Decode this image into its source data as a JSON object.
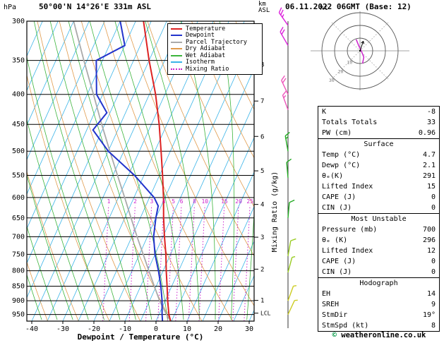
{
  "header": {
    "pressure_unit": "hPa",
    "station": "50°00'N 14°26'E 331m ASL",
    "km_label": "km",
    "asl_label": "ASL",
    "datetime": "06.11.2022 06GMT (Base: 12)"
  },
  "legend": {
    "items": [
      {
        "label": "Temperature",
        "color": "#dd2222",
        "dashed": false
      },
      {
        "label": "Dewpoint",
        "color": "#2233cc",
        "dashed": false
      },
      {
        "label": "Parcel Trajectory",
        "color": "#aaaaaa",
        "dashed": false
      },
      {
        "label": "Dry Adiabat",
        "color": "#e09b4d",
        "dashed": false
      },
      {
        "label": "Wet Adiabat",
        "color": "#3cb43c",
        "dashed": false
      },
      {
        "label": "Isotherm",
        "color": "#3ab4e8",
        "dashed": false
      },
      {
        "label": "Mixing Ratio",
        "color": "#cc22cc",
        "dashed": true
      }
    ]
  },
  "axes": {
    "pressure_ticks": [
      300,
      350,
      400,
      450,
      500,
      550,
      600,
      650,
      700,
      750,
      800,
      850,
      900,
      950
    ],
    "temp_ticks": [
      -40,
      -30,
      -20,
      -10,
      0,
      10,
      20,
      30
    ],
    "km_ticks": [
      8,
      7,
      6,
      5,
      4,
      3,
      2,
      1
    ],
    "lcl_label": "LCL",
    "xlabel": "Dewpoint / Temperature (°C)",
    "mixing_ratio_axis_label": "Mixing Ratio (g/kg)"
  },
  "hodograph": {
    "unit": "kt",
    "ring_labels": [
      10,
      20,
      30
    ],
    "trace_kt": [
      [
        2,
        -10
      ],
      [
        3,
        -5
      ],
      [
        1,
        0
      ],
      [
        -1,
        4
      ],
      [
        -3,
        9
      ]
    ],
    "storm_dir_deg": 19,
    "storm_spd_kt": 8
  },
  "panel": {
    "indices": {
      "rows": [
        {
          "label": "K",
          "value": "-8"
        },
        {
          "label": "Totals Totals",
          "value": "33"
        },
        {
          "label": "PW (cm)",
          "value": "0.96"
        }
      ]
    },
    "surface": {
      "title": "Surface",
      "rows": [
        {
          "label": "Temp (°C)",
          "value": "4.7"
        },
        {
          "label": "Dewp (°C)",
          "value": "2.1"
        },
        {
          "label": "θₑ(K)",
          "value": "291"
        },
        {
          "label": "Lifted Index",
          "value": "15"
        },
        {
          "label": "CAPE (J)",
          "value": "0"
        },
        {
          "label": "CIN (J)",
          "value": "0"
        }
      ]
    },
    "most_unstable": {
      "title": "Most Unstable",
      "rows": [
        {
          "label": "Pressure (mb)",
          "value": "700"
        },
        {
          "label": "θₑ (K)",
          "value": "296"
        },
        {
          "label": "Lifted Index",
          "value": "12"
        },
        {
          "label": "CAPE (J)",
          "value": "0"
        },
        {
          "label": "CIN (J)",
          "value": "0"
        }
      ]
    },
    "hodograph_info": {
      "title": "Hodograph",
      "rows": [
        {
          "label": "EH",
          "value": "14"
        },
        {
          "label": "SREH",
          "value": "9"
        },
        {
          "label": "StmDir",
          "value": "19°"
        },
        {
          "label": "StmSpd (kt)",
          "value": "8"
        }
      ]
    }
  },
  "footer": {
    "copyright_symbol": "©",
    "copyright_text": " weatheronline.co.uk"
  },
  "chart_data": {
    "type": "line",
    "title": "Skew-T log-P sounding",
    "x_axis": {
      "label": "Dewpoint / Temperature (°C)",
      "min": -40,
      "max": 35,
      "tick_step": 10
    },
    "y_axis": {
      "label": "hPa",
      "scale": "log",
      "bottom_hpa": 975,
      "top_hpa": 300
    },
    "skew": 0.45,
    "isotherm_step_c": 5,
    "dry_adiabat_step_k": 10,
    "wet_adiabat_step_c": 5,
    "mixing_ratio_lines_gkg": [
      1,
      2,
      3,
      4,
      5,
      6,
      8,
      10,
      15,
      20,
      25
    ],
    "lcl_hpa": 945,
    "series": [
      {
        "name": "Temperature",
        "points_p_t": [
          [
            975,
            4.7
          ],
          [
            950,
            3.2
          ],
          [
            900,
            0.8
          ],
          [
            850,
            -1.5
          ],
          [
            800,
            -4.0
          ],
          [
            750,
            -6.5
          ],
          [
            700,
            -9.5
          ],
          [
            650,
            -12.5
          ],
          [
            600,
            -15.5
          ],
          [
            550,
            -19.0
          ],
          [
            500,
            -23.0
          ],
          [
            450,
            -27.5
          ],
          [
            400,
            -33.0
          ],
          [
            350,
            -40.0
          ],
          [
            300,
            -47.5
          ]
        ]
      },
      {
        "name": "Dewpoint",
        "points_p_t": [
          [
            975,
            2.1
          ],
          [
            950,
            1.0
          ],
          [
            900,
            -1.0
          ],
          [
            850,
            -3.5
          ],
          [
            800,
            -6.5
          ],
          [
            750,
            -10.0
          ],
          [
            700,
            -13.0
          ],
          [
            650,
            -15.0
          ],
          [
            620,
            -16.0
          ],
          [
            600,
            -18.5
          ],
          [
            550,
            -28.0
          ],
          [
            500,
            -40.0
          ],
          [
            460,
            -48.0
          ],
          [
            430,
            -46.0
          ],
          [
            400,
            -52.0
          ],
          [
            350,
            -57.0
          ],
          [
            330,
            -50.0
          ],
          [
            300,
            -55.0
          ]
        ]
      },
      {
        "name": "Parcel Trajectory",
        "points_p_t": [
          [
            975,
            4.7
          ],
          [
            945,
            2.0
          ],
          [
            900,
            -1.8
          ],
          [
            850,
            -5.6
          ],
          [
            800,
            -9.6
          ],
          [
            750,
            -13.8
          ],
          [
            700,
            -18.3
          ],
          [
            650,
            -23.0
          ],
          [
            600,
            -28.0
          ],
          [
            550,
            -33.5
          ],
          [
            500,
            -39.5
          ],
          [
            450,
            -46.0
          ],
          [
            400,
            -53.0
          ],
          [
            350,
            -61.0
          ],
          [
            300,
            -70.0
          ]
        ]
      }
    ],
    "wind_barbs": [
      {
        "p": 305,
        "dir_deg": 325,
        "spd_kt": 25,
        "color": "#dd22dd"
      },
      {
        "p": 330,
        "dir_deg": 330,
        "spd_kt": 20,
        "color": "#dd22dd"
      },
      {
        "p": 400,
        "dir_deg": 335,
        "spd_kt": 20,
        "color": "#ee55bb"
      },
      {
        "p": 425,
        "dir_deg": 340,
        "spd_kt": 15,
        "color": "#ee55bb"
      },
      {
        "p": 500,
        "dir_deg": 350,
        "spd_kt": 15,
        "color": "#22aa22"
      },
      {
        "p": 555,
        "dir_deg": 355,
        "spd_kt": 10,
        "color": "#22aa22"
      },
      {
        "p": 650,
        "dir_deg": 5,
        "spd_kt": 10,
        "color": "#22aa22"
      },
      {
        "p": 755,
        "dir_deg": 10,
        "spd_kt": 10,
        "color": "#99cc22"
      },
      {
        "p": 805,
        "dir_deg": 15,
        "spd_kt": 5,
        "color": "#99cc22"
      },
      {
        "p": 900,
        "dir_deg": 20,
        "spd_kt": 5,
        "color": "#cccc22"
      },
      {
        "p": 950,
        "dir_deg": 25,
        "spd_kt": 5,
        "color": "#cccc22"
      }
    ]
  }
}
